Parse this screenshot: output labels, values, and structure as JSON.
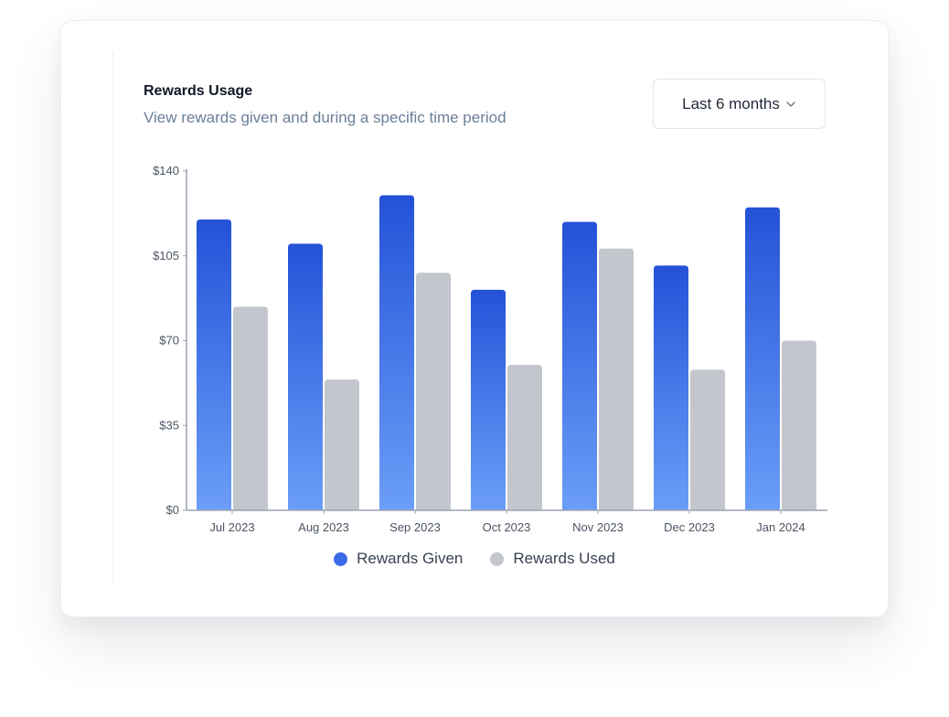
{
  "header": {
    "title": "Rewards Usage",
    "subtitle": "View rewards given and during a specific time period"
  },
  "period_select": {
    "selected": "Last 6 months"
  },
  "colors": {
    "given_top": "#2452d8",
    "given_bottom": "#6b9ef8",
    "used": "#c3c6cd",
    "axis": "#9ca3af"
  },
  "legend": [
    {
      "label": "Rewards Given",
      "color": "#3b6be6",
      "icon": "circle-dot-icon"
    },
    {
      "label": "Rewards Used",
      "color": "#c3c6cd",
      "icon": "circle-dot-icon"
    }
  ],
  "chart_data": {
    "type": "bar",
    "categories": [
      "Jul 2023",
      "Aug 2023",
      "Sep 2023",
      "Oct 2023",
      "Nov 2023",
      "Dec 2023",
      "Jan 2024"
    ],
    "series": [
      {
        "name": "Rewards Given",
        "values": [
          120,
          110,
          130,
          91,
          119,
          101,
          125
        ]
      },
      {
        "name": "Rewards Used",
        "values": [
          84,
          54,
          98,
          60,
          108,
          58,
          70
        ]
      }
    ],
    "yticks": [
      "$0",
      "$35",
      "$70",
      "$105",
      "$140"
    ],
    "ylim": [
      0,
      140
    ],
    "grid": false,
    "legend_position": "bottom"
  }
}
